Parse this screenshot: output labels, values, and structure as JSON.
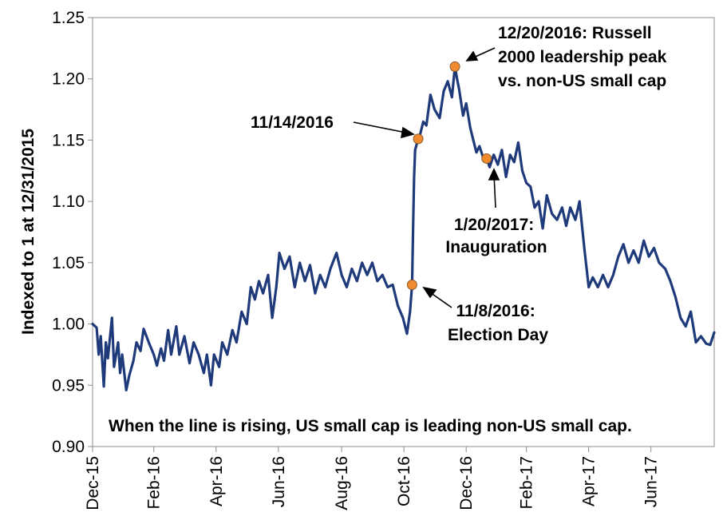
{
  "chart_data": {
    "type": "line",
    "title": "",
    "xlabel": "",
    "ylabel": "Indexed to 1 at 12/31/2015",
    "ylim": [
      0.9,
      1.25
    ],
    "yticks": [
      "0.90",
      "0.95",
      "1.00",
      "1.05",
      "1.10",
      "1.15",
      "1.20",
      "1.25"
    ],
    "xlim": [
      "2015-12-31",
      "2017-08-31"
    ],
    "xticks": [
      {
        "date": "2015-12-31",
        "label": "Dec-15"
      },
      {
        "date": "2016-02-29",
        "label": "Feb-16"
      },
      {
        "date": "2016-04-30",
        "label": "Apr-16"
      },
      {
        "date": "2016-06-30",
        "label": "Jun-16"
      },
      {
        "date": "2016-08-31",
        "label": "Aug-16"
      },
      {
        "date": "2016-10-31",
        "label": "Oct-16"
      },
      {
        "date": "2016-12-31",
        "label": "Dec-16"
      },
      {
        "date": "2017-02-28",
        "label": "Feb-17"
      },
      {
        "date": "2017-04-30",
        "label": "Apr-17"
      },
      {
        "date": "2017-06-30",
        "label": "Jun-17"
      }
    ],
    "grid": false,
    "line_color": "#1f3a7a",
    "marker_color": "#ef8a2e",
    "series": [
      {
        "values": [
          [
            "2015-12-31",
            1.0
          ],
          [
            "2016-01-04",
            0.997
          ],
          [
            "2016-01-06",
            0.975
          ],
          [
            "2016-01-08",
            0.99
          ],
          [
            "2016-01-11",
            0.949
          ],
          [
            "2016-01-13",
            0.985
          ],
          [
            "2016-01-15",
            0.972
          ],
          [
            "2016-01-19",
            1.005
          ],
          [
            "2016-01-21",
            0.965
          ],
          [
            "2016-01-25",
            0.985
          ],
          [
            "2016-01-27",
            0.96
          ],
          [
            "2016-01-29",
            0.975
          ],
          [
            "2016-02-02",
            0.946
          ],
          [
            "2016-02-05",
            0.958
          ],
          [
            "2016-02-09",
            0.97
          ],
          [
            "2016-02-12",
            0.985
          ],
          [
            "2016-02-16",
            0.978
          ],
          [
            "2016-02-19",
            0.996
          ],
          [
            "2016-02-24",
            0.985
          ],
          [
            "2016-02-29",
            0.975
          ],
          [
            "2016-03-03",
            0.966
          ],
          [
            "2016-03-07",
            0.98
          ],
          [
            "2016-03-10",
            0.97
          ],
          [
            "2016-03-14",
            0.995
          ],
          [
            "2016-03-17",
            0.975
          ],
          [
            "2016-03-22",
            0.998
          ],
          [
            "2016-03-25",
            0.975
          ],
          [
            "2016-03-30",
            0.99
          ],
          [
            "2016-04-04",
            0.968
          ],
          [
            "2016-04-08",
            0.985
          ],
          [
            "2016-04-13",
            0.975
          ],
          [
            "2016-04-18",
            0.96
          ],
          [
            "2016-04-21",
            0.975
          ],
          [
            "2016-04-25",
            0.95
          ],
          [
            "2016-04-28",
            0.975
          ],
          [
            "2016-05-03",
            0.965
          ],
          [
            "2016-05-06",
            0.985
          ],
          [
            "2016-05-11",
            0.975
          ],
          [
            "2016-05-16",
            0.995
          ],
          [
            "2016-05-20",
            0.985
          ],
          [
            "2016-05-25",
            1.01
          ],
          [
            "2016-05-30",
            1.0
          ],
          [
            "2016-06-03",
            1.03
          ],
          [
            "2016-06-07",
            1.02
          ],
          [
            "2016-06-11",
            1.035
          ],
          [
            "2016-06-15",
            1.025
          ],
          [
            "2016-06-20",
            1.04
          ],
          [
            "2016-06-24",
            1.005
          ],
          [
            "2016-06-28",
            1.03
          ],
          [
            "2016-07-01",
            1.058
          ],
          [
            "2016-07-06",
            1.045
          ],
          [
            "2016-07-11",
            1.055
          ],
          [
            "2016-07-16",
            1.03
          ],
          [
            "2016-07-21",
            1.05
          ],
          [
            "2016-07-26",
            1.035
          ],
          [
            "2016-07-31",
            1.048
          ],
          [
            "2016-08-05",
            1.025
          ],
          [
            "2016-08-10",
            1.04
          ],
          [
            "2016-08-15",
            1.03
          ],
          [
            "2016-08-20",
            1.045
          ],
          [
            "2016-08-26",
            1.058
          ],
          [
            "2016-08-31",
            1.04
          ],
          [
            "2016-09-05",
            1.03
          ],
          [
            "2016-09-10",
            1.045
          ],
          [
            "2016-09-15",
            1.035
          ],
          [
            "2016-09-20",
            1.05
          ],
          [
            "2016-09-25",
            1.04
          ],
          [
            "2016-09-30",
            1.05
          ],
          [
            "2016-10-05",
            1.035
          ],
          [
            "2016-10-10",
            1.04
          ],
          [
            "2016-10-15",
            1.03
          ],
          [
            "2016-10-20",
            1.032
          ],
          [
            "2016-10-25",
            1.015
          ],
          [
            "2016-10-30",
            1.005
          ],
          [
            "2016-11-03",
            0.992
          ],
          [
            "2016-11-06",
            1.01
          ],
          [
            "2016-11-08",
            1.032
          ],
          [
            "2016-11-09",
            1.08
          ],
          [
            "2016-11-10",
            1.12
          ],
          [
            "2016-11-11",
            1.142
          ],
          [
            "2016-11-14",
            1.151
          ],
          [
            "2016-11-16",
            1.155
          ],
          [
            "2016-11-19",
            1.165
          ],
          [
            "2016-11-22",
            1.162
          ],
          [
            "2016-11-26",
            1.187
          ],
          [
            "2016-11-30",
            1.175
          ],
          [
            "2016-12-05",
            1.168
          ],
          [
            "2016-12-09",
            1.19
          ],
          [
            "2016-12-13",
            1.198
          ],
          [
            "2016-12-17",
            1.185
          ],
          [
            "2016-12-20",
            1.21
          ],
          [
            "2016-12-22",
            1.2
          ],
          [
            "2016-12-24",
            1.192
          ],
          [
            "2016-12-28",
            1.17
          ],
          [
            "2016-12-31",
            1.18
          ],
          [
            "2017-01-04",
            1.16
          ],
          [
            "2017-01-07",
            1.15
          ],
          [
            "2017-01-10",
            1.14
          ],
          [
            "2017-01-13",
            1.145
          ],
          [
            "2017-01-17",
            1.135
          ],
          [
            "2017-01-20",
            1.135
          ],
          [
            "2017-01-23",
            1.128
          ],
          [
            "2017-01-27",
            1.138
          ],
          [
            "2017-01-31",
            1.13
          ],
          [
            "2017-02-04",
            1.142
          ],
          [
            "2017-02-08",
            1.12
          ],
          [
            "2017-02-12",
            1.138
          ],
          [
            "2017-02-16",
            1.132
          ],
          [
            "2017-02-20",
            1.148
          ],
          [
            "2017-02-24",
            1.125
          ],
          [
            "2017-02-28",
            1.115
          ],
          [
            "2017-03-04",
            1.112
          ],
          [
            "2017-03-08",
            1.095
          ],
          [
            "2017-03-12",
            1.1
          ],
          [
            "2017-03-16",
            1.078
          ],
          [
            "2017-03-20",
            1.105
          ],
          [
            "2017-03-25",
            1.09
          ],
          [
            "2017-03-30",
            1.085
          ],
          [
            "2017-04-04",
            1.095
          ],
          [
            "2017-04-08",
            1.08
          ],
          [
            "2017-04-12",
            1.095
          ],
          [
            "2017-04-17",
            1.085
          ],
          [
            "2017-04-21",
            1.1
          ],
          [
            "2017-04-26",
            1.06
          ],
          [
            "2017-04-30",
            1.03
          ],
          [
            "2017-05-04",
            1.038
          ],
          [
            "2017-05-09",
            1.03
          ],
          [
            "2017-05-14",
            1.04
          ],
          [
            "2017-05-19",
            1.03
          ],
          [
            "2017-05-24",
            1.04
          ],
          [
            "2017-05-29",
            1.055
          ],
          [
            "2017-06-03",
            1.065
          ],
          [
            "2017-06-08",
            1.05
          ],
          [
            "2017-06-13",
            1.06
          ],
          [
            "2017-06-18",
            1.05
          ],
          [
            "2017-06-23",
            1.068
          ],
          [
            "2017-06-28",
            1.055
          ],
          [
            "2017-07-03",
            1.062
          ],
          [
            "2017-07-08",
            1.05
          ],
          [
            "2017-07-14",
            1.045
          ],
          [
            "2017-07-19",
            1.035
          ],
          [
            "2017-07-24",
            1.022
          ],
          [
            "2017-07-29",
            1.005
          ],
          [
            "2017-08-03",
            0.998
          ],
          [
            "2017-08-08",
            1.01
          ],
          [
            "2017-08-13",
            0.985
          ],
          [
            "2017-08-18",
            0.99
          ],
          [
            "2017-08-23",
            0.984
          ],
          [
            "2017-08-27",
            0.983
          ],
          [
            "2017-08-31",
            0.993
          ]
        ]
      }
    ],
    "markers": [
      {
        "date": "2016-11-08",
        "value": 1.032
      },
      {
        "date": "2016-11-14",
        "value": 1.151
      },
      {
        "date": "2016-12-20",
        "value": 1.21
      },
      {
        "date": "2017-01-20",
        "value": 1.135
      }
    ],
    "annotations": [
      {
        "id": "election",
        "lines": [
          "11/8/2016:",
          "Election Day"
        ]
      },
      {
        "id": "nov14",
        "lines": [
          "11/14/2016"
        ]
      },
      {
        "id": "peak",
        "lines": [
          "12/20/2016: Russell",
          "2000 leadership peak",
          "vs. non-US small cap"
        ]
      },
      {
        "id": "inauguration",
        "lines": [
          "1/20/2017:",
          "Inauguration"
        ]
      }
    ],
    "note": "When the line is rising, US small cap is leading non-US small cap."
  }
}
